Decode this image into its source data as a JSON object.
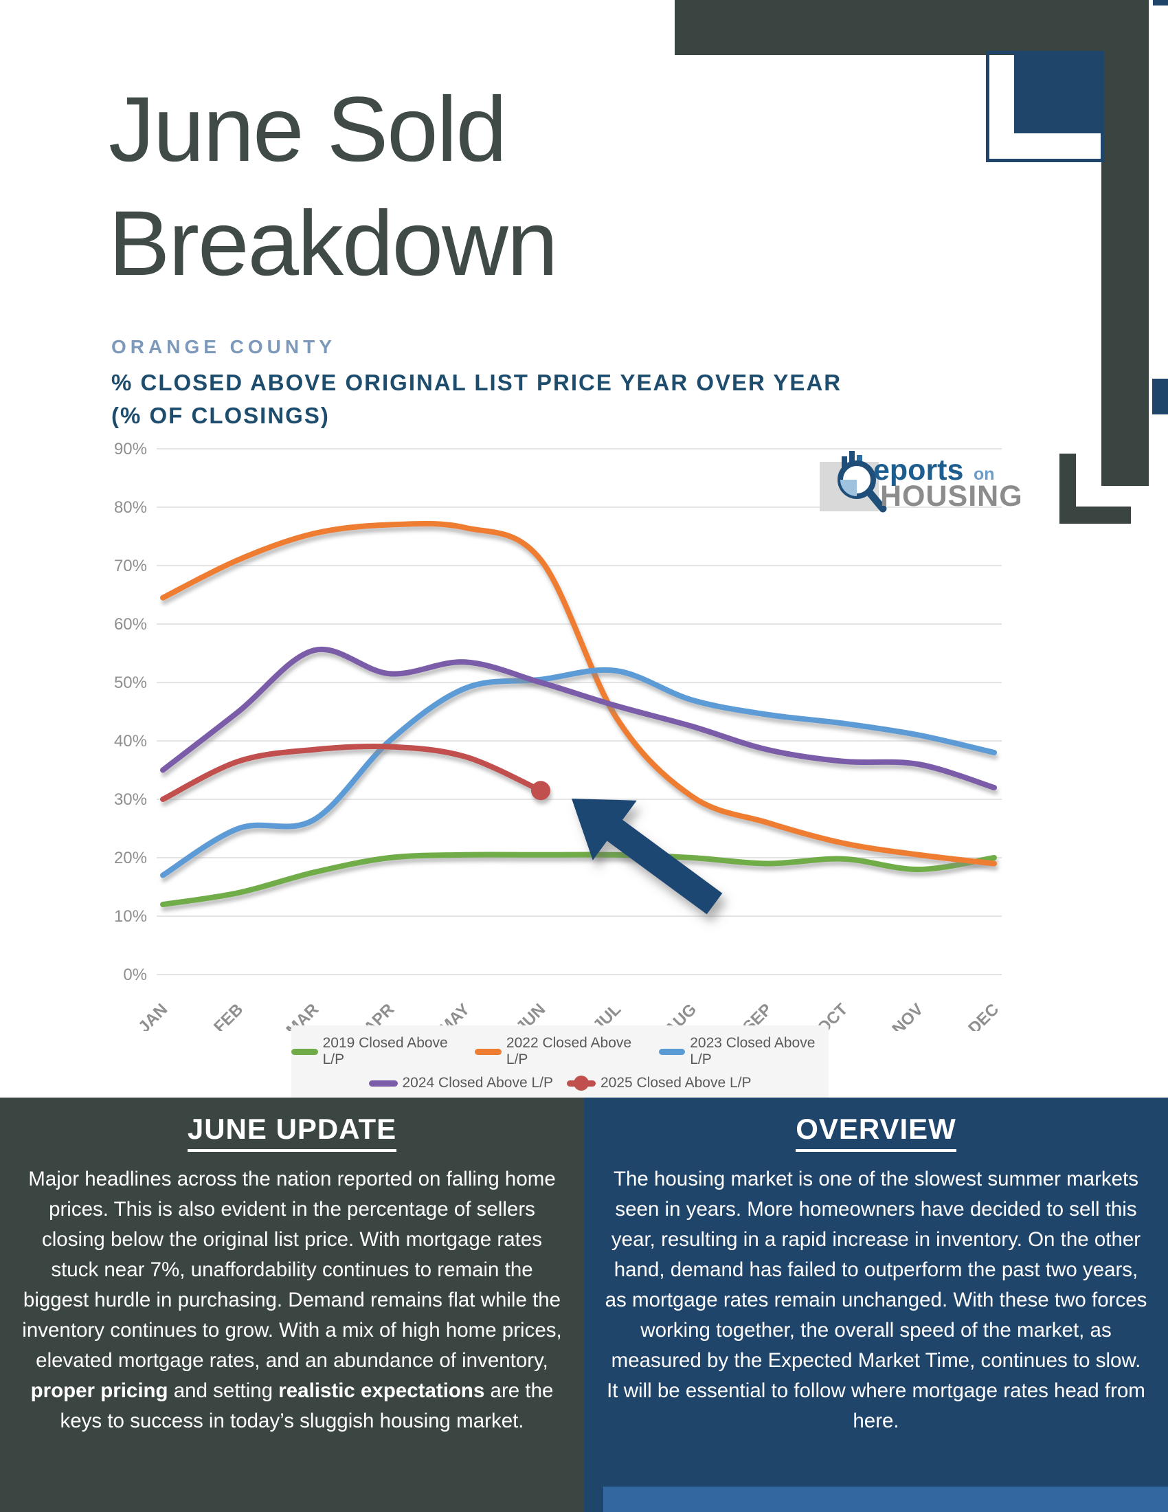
{
  "page": {
    "title_lines": [
      "June Sold",
      "Breakdown"
    ]
  },
  "chart_header": {
    "region": "ORANGE COUNTY",
    "title_line1": "% CLOSED ABOVE ORIGINAL LIST PRICE YEAR OVER YEAR",
    "title_line2": "(% OF CLOSINGS)"
  },
  "logo": {
    "word_main": "eports",
    "word_on": "on",
    "word_sub": "HOUSING"
  },
  "chart_data": {
    "type": "line",
    "title": "Orange County — % Closed Above Original List Price Year Over Year (% of Closings)",
    "x_categories": [
      "JAN",
      "FEB",
      "MAR",
      "APR",
      "MAY",
      "JUN",
      "JUL",
      "AUG",
      "SEP",
      "OCT",
      "NOV",
      "DEC"
    ],
    "y_ticks": [
      0,
      10,
      20,
      30,
      40,
      50,
      60,
      70,
      80,
      90
    ],
    "y_tick_suffix": "%",
    "ylim": [
      0,
      90
    ],
    "grid": true,
    "legend_position": "bottom",
    "series": [
      {
        "name": "2019 Closed Above L/P",
        "color": "#6fac47",
        "values": [
          12,
          14,
          17.5,
          20,
          20.5,
          20.5,
          20.5,
          20,
          19,
          19.8,
          18,
          20
        ]
      },
      {
        "name": "2022 Closed Above L/P",
        "color": "#ee7d31",
        "values": [
          64.5,
          71,
          75.5,
          77,
          76.5,
          71,
          44,
          30.5,
          26,
          22.5,
          20.5,
          19
        ]
      },
      {
        "name": "2023 Closed Above L/P",
        "color": "#5b9bd5",
        "values": [
          17,
          25,
          26.5,
          40,
          49,
          50.5,
          52,
          47,
          44.5,
          43,
          41,
          38
        ]
      },
      {
        "name": "2024 Closed Above L/P",
        "color": "#7a5ca8",
        "values": [
          35,
          45,
          55.5,
          51.5,
          53.5,
          50,
          46,
          42.5,
          38.5,
          36.5,
          36,
          32
        ]
      },
      {
        "name": "2025 Closed Above L/P",
        "color": "#c0504d",
        "values": [
          30,
          36.5,
          38.5,
          39,
          37.3,
          31.5
        ],
        "end_marker": true
      }
    ],
    "annotation": {
      "type": "arrow",
      "points_at": "2025 last value (JUN)",
      "color": "#1d4672"
    }
  },
  "panels": {
    "left": {
      "title": "JUNE UPDATE",
      "runs": [
        {
          "text": "Major headlines across the nation reported on falling home prices. This is also evident in the percentage of sellers closing below the original list price. With mortgage rates stuck near 7%, unaffordability continues to remain the biggest hurdle in purchasing. Demand remains flat while the inventory continues to grow. With a mix of high home prices, elevated mortgage rates, and an abundance of inventory, ",
          "bold": false
        },
        {
          "text": "proper pricing",
          "bold": true
        },
        {
          "text": " and setting ",
          "bold": false
        },
        {
          "text": "realistic expectations",
          "bold": true
        },
        {
          "text": " are the keys to success in today’s sluggish housing market.",
          "bold": false
        }
      ]
    },
    "right": {
      "title": "OVERVIEW",
      "runs": [
        {
          "text": "The housing market is one of the slowest summer markets seen in years. More homeowners have decided to sell this year, resulting in a rapid increase in inventory. On the other hand, demand has failed to outperform the past two years, as mortgage rates remain unchanged. With these two forces working together, the overall speed of the market, as measured by the Expected Market Time, continues to slow. It will be essential to follow where mortgage rates head from here.",
          "bold": false
        }
      ]
    }
  },
  "colors": {
    "slate_decor": "#3a4541",
    "navy_decor": "#1f456b",
    "bottom_accent": "#33679f",
    "main_title_text": "#404b47",
    "header_region_text": "#7c98ba",
    "header_title_text": "#1d4c6d",
    "grid_line": "#e4e4e4",
    "axis_label": "#8f8f8f",
    "arrow": "#1d4672"
  }
}
